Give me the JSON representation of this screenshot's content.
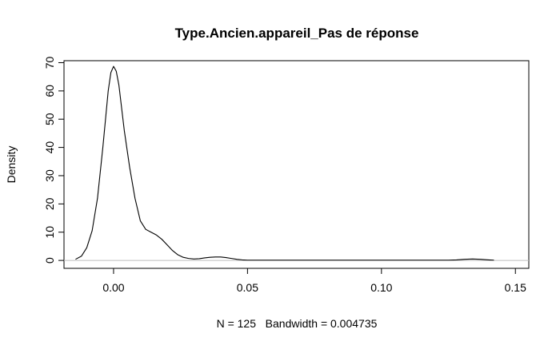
{
  "chart_data": {
    "type": "line",
    "title": "Type.Ancien.appareil_Pas de réponse",
    "xlabel": "N = 125   Bandwidth = 0.004735",
    "ylabel": "Density",
    "xlim": [
      -0.0185,
      0.155
    ],
    "ylim": [
      -2.8,
      70.7
    ],
    "x_ticks": [
      0.0,
      0.05,
      0.1,
      0.15
    ],
    "x_tick_labels": [
      "0.00",
      "0.05",
      "0.10",
      "0.15"
    ],
    "y_ticks": [
      0,
      10,
      20,
      30,
      40,
      50,
      60,
      70
    ],
    "y_tick_labels": [
      "0",
      "10",
      "20",
      "30",
      "40",
      "50",
      "60",
      "70"
    ],
    "grid": false,
    "baseline": 0,
    "series": [
      {
        "x": [
          -0.0142,
          -0.012,
          -0.01,
          -0.008,
          -0.006,
          -0.004,
          -0.002,
          -0.001,
          0.0,
          0.001,
          0.002,
          0.003,
          0.004,
          0.006,
          0.008,
          0.01,
          0.012,
          0.014,
          0.016,
          0.018,
          0.02,
          0.022,
          0.024,
          0.026,
          0.028,
          0.03,
          0.032,
          0.034,
          0.036,
          0.038,
          0.04,
          0.042,
          0.044,
          0.046,
          0.048,
          0.05,
          0.125,
          0.128,
          0.131,
          0.134,
          0.137,
          0.14,
          0.142
        ],
        "y": [
          0.4,
          1.5,
          4.5,
          10.5,
          22,
          40,
          60,
          66.5,
          68.7,
          67,
          62,
          54,
          46,
          33,
          22,
          14,
          11,
          10,
          9,
          7.5,
          5.5,
          3.5,
          2,
          1.1,
          0.7,
          0.5,
          0.6,
          0.9,
          1.1,
          1.2,
          1.2,
          1.0,
          0.7,
          0.4,
          0.2,
          0.1,
          0.1,
          0.2,
          0.4,
          0.5,
          0.4,
          0.2,
          0.1
        ]
      }
    ]
  }
}
